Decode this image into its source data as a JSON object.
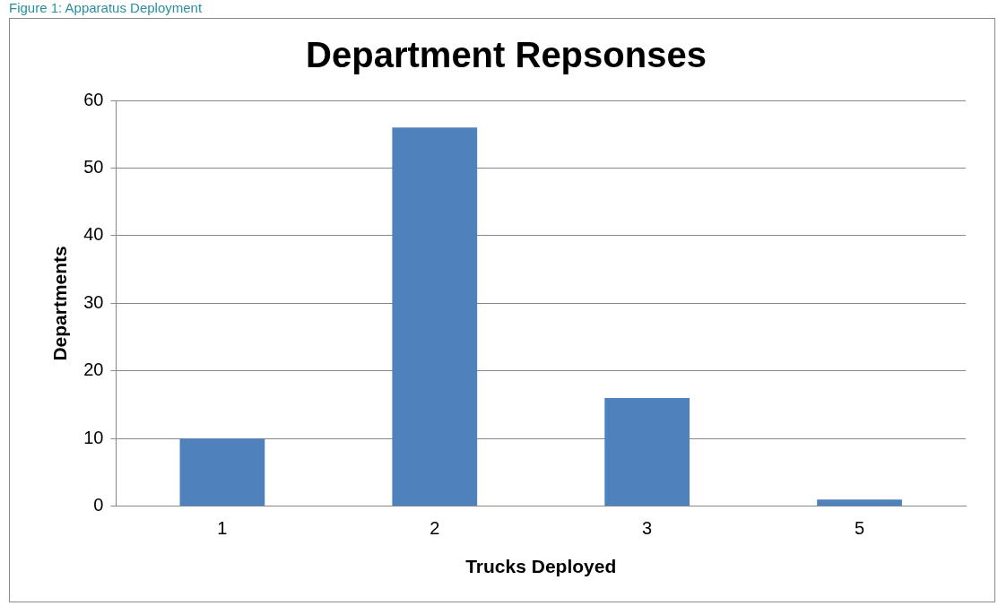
{
  "chart_data": {
    "type": "bar",
    "title": "Department Repsonses",
    "xlabel": "Trucks Deployed",
    "ylabel": "Departments",
    "categories": [
      "1",
      "2",
      "3",
      "5"
    ],
    "values": [
      10,
      56,
      16,
      1
    ],
    "color": "#4f81bd",
    "ylim": [
      0,
      60
    ],
    "yticks": [
      0,
      10,
      20,
      30,
      40,
      50,
      60
    ],
    "grid": "y",
    "annotations": [
      "Figure 1: Apparatus Deployment"
    ]
  }
}
